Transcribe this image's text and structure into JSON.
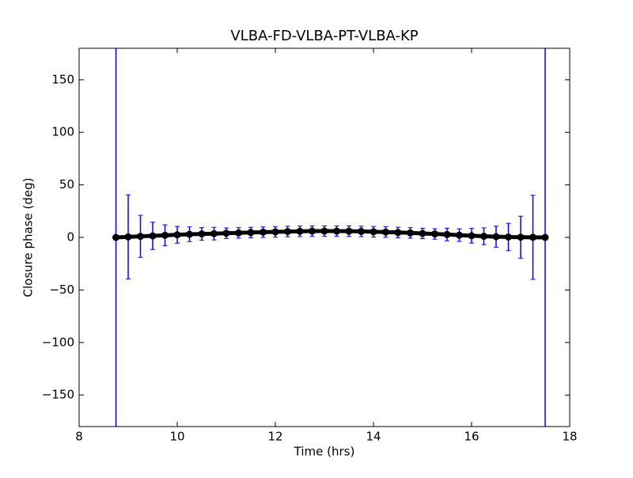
{
  "chart_data": {
    "type": "errorbar",
    "title": "VLBA-FD-VLBA-PT-VLBA-KP",
    "xlabel": "Time (hrs)",
    "ylabel": "Closure phase (deg)",
    "x": [
      8.75,
      9.0,
      9.25,
      9.5,
      9.75,
      10.0,
      10.25,
      10.5,
      10.75,
      11.0,
      11.25,
      11.5,
      11.75,
      12.0,
      12.25,
      12.5,
      12.75,
      13.0,
      13.25,
      13.5,
      13.75,
      14.0,
      14.25,
      14.5,
      14.75,
      15.0,
      15.25,
      15.5,
      15.75,
      16.0,
      16.25,
      16.5,
      16.75,
      17.0,
      17.25,
      17.5
    ],
    "values": [
      0,
      0.5,
      1,
      1.5,
      2,
      2.5,
      3,
      3.3,
      3.6,
      4,
      4.3,
      4.7,
      5,
      5.3,
      5.6,
      5.8,
      6,
      6,
      6,
      5.9,
      5.7,
      5.4,
      5.1,
      4.7,
      4.3,
      3.8,
      3.3,
      2.8,
      2.2,
      1.6,
      1.1,
      0.7,
      0.4,
      0.2,
      0.1,
      0
    ],
    "errors": [
      250,
      40,
      20,
      13,
      10,
      8,
      7,
      6,
      6,
      5,
      5,
      5,
      5,
      5,
      5,
      5,
      5,
      5,
      5,
      5,
      5,
      5,
      5,
      5,
      5,
      5,
      5,
      6,
      6,
      7,
      8,
      10,
      13,
      20,
      40,
      250
    ],
    "error_color": "#0000ff",
    "marker_color": "#000000",
    "xlim": [
      8,
      18
    ],
    "ylim": [
      -180,
      180
    ],
    "xticks": [
      8,
      10,
      12,
      14,
      16,
      18
    ],
    "yticks": [
      {
        "value": -150,
        "label": "−150"
      },
      {
        "value": -100,
        "label": "−100"
      },
      {
        "value": -50,
        "label": "−50"
      },
      0,
      50,
      100,
      150
    ]
  }
}
